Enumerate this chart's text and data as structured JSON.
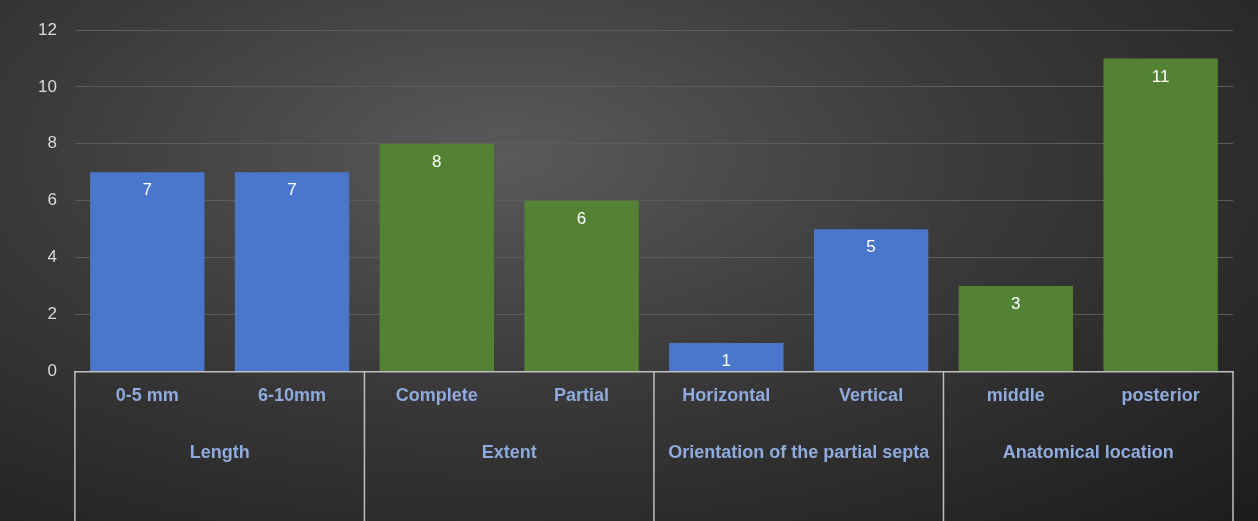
{
  "chart_data": {
    "type": "bar",
    "categories": [
      "0-5 mm",
      "6-10mm",
      "Complete",
      "Partial",
      "Horizontal",
      "Vertical",
      "middle",
      "posterior"
    ],
    "values": [
      7,
      7,
      8,
      6,
      1,
      5,
      3,
      11
    ],
    "colors": [
      "#4a76cc",
      "#4a76cc",
      "#548235",
      "#548235",
      "#4a76cc",
      "#4a76cc",
      "#548235",
      "#548235"
    ],
    "annotations": [
      "Length",
      "Extent",
      "Orientation of the partial septa",
      "Anatomical location"
    ],
    "ylim": [
      0,
      12
    ],
    "yticks": [
      0,
      2,
      4,
      6,
      8,
      10,
      12
    ],
    "grid": "y",
    "data_labels": true,
    "legend": false
  }
}
